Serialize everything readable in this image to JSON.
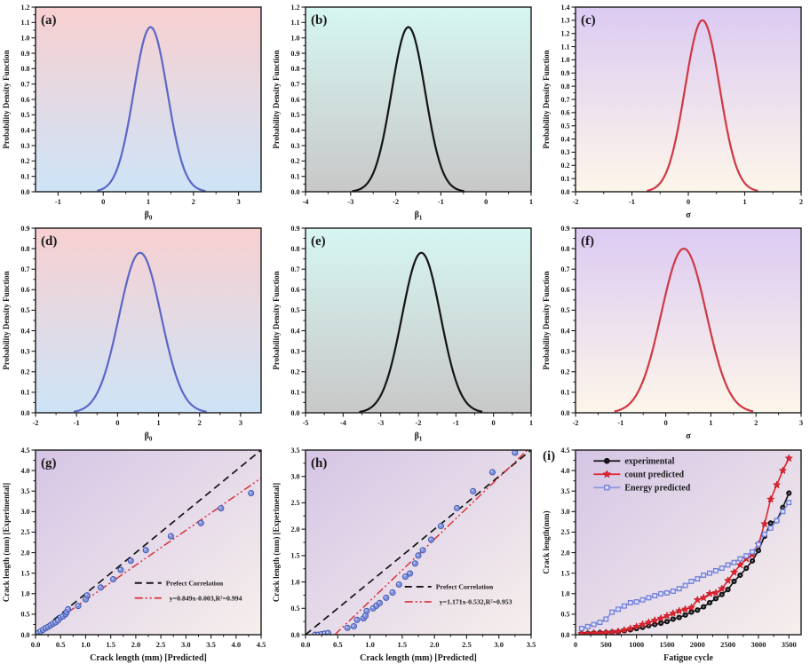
{
  "figure": {
    "background": "#ffffff",
    "description": "3x3 grid of statistical plots: probability density functions (a-f) and crack length prediction plots (g-i)"
  },
  "chart_data": [
    {
      "key": "a",
      "label": "(a)",
      "type": "pdf",
      "title": "",
      "xlabel": {
        "main": "β",
        "sub": "0"
      },
      "ylabel": "Probability Density Function",
      "xlim": [
        -1.5,
        3.5
      ],
      "ylim": [
        0,
        1.2
      ],
      "xaxis": {
        "min": -1,
        "max": 3,
        "step": 1,
        "decimals": 0
      },
      "yaxis": {
        "min": 0,
        "max": 1.2,
        "step": 0.1,
        "decimals": 1
      },
      "bg": {
        "from": "#f8d0d1",
        "to": "#cde4f7",
        "dir": "v"
      },
      "curve": {
        "color": "#5b67c6",
        "mean": 1.05,
        "sd": 0.373,
        "peak": 1.07,
        "range": [
          -0.12,
          2.25
        ]
      }
    },
    {
      "key": "b",
      "label": "(b)",
      "type": "pdf",
      "title": "",
      "xlabel": {
        "main": "β",
        "sub": "1"
      },
      "ylabel": "Probability Density Function",
      "xlim": [
        -4,
        1
      ],
      "ylim": [
        0,
        1.2
      ],
      "xaxis": {
        "min": -4,
        "max": 1,
        "step": 1,
        "decimals": 0
      },
      "yaxis": {
        "min": 0,
        "max": 1.2,
        "step": 0.1,
        "decimals": 1
      },
      "bg": {
        "from": "#d6f6f2",
        "to": "#c8c8c8",
        "dir": "v"
      },
      "curve": {
        "color": "#141414",
        "mean": -1.72,
        "sd": 0.373,
        "peak": 1.07,
        "range": [
          -2.95,
          -0.5
        ]
      }
    },
    {
      "key": "c",
      "label": "(c)",
      "type": "pdf",
      "title": "",
      "xlabel": {
        "main": "σ",
        "sub": ""
      },
      "ylabel": "Probability Density Function",
      "xlim": [
        -2,
        2
      ],
      "ylim": [
        0,
        1.4
      ],
      "xaxis": {
        "min": -2,
        "max": 2,
        "step": 1,
        "decimals": 0
      },
      "yaxis": {
        "min": 0,
        "max": 1.4,
        "step": 0.1,
        "decimals": 1
      },
      "bg": {
        "from": "#dccaf2",
        "to": "#fdf6ea",
        "dir": "v"
      },
      "curve": {
        "color": "#cf3843",
        "mean": 0.25,
        "sd": 0.307,
        "peak": 1.3,
        "range": [
          -0.72,
          1.22
        ]
      }
    },
    {
      "key": "d",
      "label": "(d)",
      "type": "pdf",
      "title": "",
      "xlabel": {
        "main": "β",
        "sub": "0"
      },
      "ylabel": "Probability Density Function",
      "xlim": [
        -2,
        3.5
      ],
      "ylim": [
        0,
        0.9
      ],
      "xaxis": {
        "min": -2,
        "max": 3,
        "step": 1,
        "decimals": 0
      },
      "yaxis": {
        "min": 0,
        "max": 0.9,
        "step": 0.1,
        "decimals": 1
      },
      "bg": {
        "from": "#f8d0d1",
        "to": "#cde4f7",
        "dir": "v"
      },
      "curve": {
        "color": "#5b67c6",
        "mean": 0.55,
        "sd": 0.512,
        "peak": 0.78,
        "range": [
          -1.05,
          2.15
        ]
      }
    },
    {
      "key": "e",
      "label": "(e)",
      "type": "pdf",
      "title": "",
      "xlabel": {
        "main": "β",
        "sub": "1"
      },
      "ylabel": "Probability Density Function",
      "xlim": [
        -5,
        1
      ],
      "ylim": [
        0,
        0.9
      ],
      "xaxis": {
        "min": -5,
        "max": 1,
        "step": 1,
        "decimals": 0
      },
      "yaxis": {
        "min": 0,
        "max": 0.9,
        "step": 0.1,
        "decimals": 1
      },
      "bg": {
        "from": "#d6f6f2",
        "to": "#c8c8c8",
        "dir": "v"
      },
      "curve": {
        "color": "#141414",
        "mean": -1.92,
        "sd": 0.512,
        "peak": 0.78,
        "range": [
          -3.55,
          -0.32
        ]
      }
    },
    {
      "key": "f",
      "label": "(f)",
      "type": "pdf",
      "title": "",
      "xlabel": {
        "main": "σ",
        "sub": ""
      },
      "ylabel": "Probability Density Function",
      "xlim": [
        -2,
        3
      ],
      "ylim": [
        0,
        0.9
      ],
      "xaxis": {
        "min": -2,
        "max": 3,
        "step": 1,
        "decimals": 0
      },
      "yaxis": {
        "min": 0,
        "max": 0.9,
        "step": 0.1,
        "decimals": 1
      },
      "bg": {
        "from": "#dccaf2",
        "to": "#fdf6ea",
        "dir": "v"
      },
      "curve": {
        "color": "#cf3843",
        "mean": 0.4,
        "sd": 0.499,
        "peak": 0.8,
        "range": [
          -1.12,
          1.92
        ]
      }
    },
    {
      "key": "g",
      "label": "(g)",
      "type": "scatter",
      "title": "",
      "xlabel": {
        "main": "Crack length (mm) [Predicted]",
        "sub": ""
      },
      "ylabel": "Crack length (mm) [Experimental]",
      "xlim": [
        0,
        4.5
      ],
      "ylim": [
        0,
        4.5
      ],
      "xaxis": {
        "min": 0,
        "max": 4.5,
        "step": 0.5,
        "decimals": 1
      },
      "yaxis": {
        "min": 0,
        "max": 4.5,
        "step": 0.5,
        "decimals": 1
      },
      "bg": {
        "from": "#d5c5e5",
        "to": "#f6efec",
        "dir": "d"
      },
      "marker": {
        "fill": "#8192dd",
        "stroke": "#3f55b0"
      },
      "points": [
        [
          0.05,
          0.04
        ],
        [
          0.1,
          0.08
        ],
        [
          0.15,
          0.12
        ],
        [
          0.2,
          0.16
        ],
        [
          0.25,
          0.19
        ],
        [
          0.3,
          0.23
        ],
        [
          0.35,
          0.27
        ],
        [
          0.4,
          0.3
        ],
        [
          0.45,
          0.35
        ],
        [
          0.5,
          0.42
        ],
        [
          0.55,
          0.45
        ],
        [
          0.6,
          0.5
        ],
        [
          0.62,
          0.55
        ],
        [
          0.65,
          0.62
        ],
        [
          0.85,
          0.7
        ],
        [
          1.0,
          0.86
        ],
        [
          1.03,
          0.96
        ],
        [
          1.3,
          1.15
        ],
        [
          1.55,
          1.35
        ],
        [
          1.7,
          1.58
        ],
        [
          1.9,
          1.8
        ],
        [
          2.2,
          2.06
        ],
        [
          2.7,
          2.4
        ],
        [
          3.3,
          2.72
        ],
        [
          3.7,
          3.08
        ],
        [
          4.3,
          3.45
        ]
      ],
      "perfect_line": {
        "label": "Prefect Correlation",
        "color": "#141414"
      },
      "fit_line": {
        "slope": 0.849,
        "intercept": -0.003,
        "label": "y=0.849x-0.003,R²=0.994",
        "color": "#d9333e"
      },
      "legend_pos": [
        0.44,
        0.72
      ]
    },
    {
      "key": "h",
      "label": "(h)",
      "type": "scatter",
      "title": "",
      "xlabel": {
        "main": "Crack length (mm) [Predicted]",
        "sub": ""
      },
      "ylabel": "Crack length (mm) [Experimental]",
      "xlim": [
        0,
        3.5
      ],
      "ylim": [
        0,
        3.5
      ],
      "xaxis": {
        "min": 0,
        "max": 3.5,
        "step": 0.5,
        "decimals": 1
      },
      "yaxis": {
        "min": 0,
        "max": 3.5,
        "step": 0.5,
        "decimals": 1
      },
      "bg": {
        "from": "#d5c5e5",
        "to": "#f6efec",
        "dir": "d"
      },
      "marker": {
        "fill": "#8192dd",
        "stroke": "#3f55b0"
      },
      "points": [
        [
          0.15,
          0.0
        ],
        [
          0.2,
          0.0
        ],
        [
          0.25,
          0.01
        ],
        [
          0.3,
          0.02
        ],
        [
          0.35,
          0.03
        ],
        [
          0.65,
          0.13
        ],
        [
          0.75,
          0.16
        ],
        [
          0.8,
          0.28
        ],
        [
          0.9,
          0.31
        ],
        [
          0.93,
          0.36
        ],
        [
          0.95,
          0.45
        ],
        [
          1.05,
          0.5
        ],
        [
          1.1,
          0.55
        ],
        [
          1.15,
          0.6
        ],
        [
          1.25,
          0.7
        ],
        [
          1.35,
          0.8
        ],
        [
          1.45,
          0.95
        ],
        [
          1.55,
          1.1
        ],
        [
          1.62,
          1.16
        ],
        [
          1.7,
          1.35
        ],
        [
          1.75,
          1.5
        ],
        [
          1.82,
          1.6
        ],
        [
          1.95,
          1.8
        ],
        [
          2.1,
          2.06
        ],
        [
          2.35,
          2.4
        ],
        [
          2.6,
          2.72
        ],
        [
          2.9,
          3.08
        ],
        [
          3.25,
          3.45
        ]
      ],
      "perfect_line": {
        "label": "Prefect Correlation",
        "color": "#141414"
      },
      "fit_line": {
        "slope": 1.171,
        "intercept": -0.532,
        "label": "y=1.171x-0.532,R²=0.953",
        "color": "#d9333e"
      },
      "legend_pos": [
        0.44,
        0.74
      ]
    },
    {
      "key": "i",
      "label": "(i)",
      "type": "series",
      "title": "",
      "xlabel": {
        "main": "Fatigue cycle",
        "sub": ""
      },
      "ylabel": "Crack length(mm)",
      "xlim": [
        0,
        3700
      ],
      "ylim": [
        0,
        4.5
      ],
      "xaxis": {
        "min": 0,
        "max": 3500,
        "step": 500,
        "decimals": 0
      },
      "yaxis": {
        "min": 0,
        "max": 4.5,
        "step": 0.5,
        "decimals": 1
      },
      "bg": {
        "from": "#d5c5e5",
        "to": "#f6efec",
        "dir": "d"
      },
      "x": [
        100,
        200,
        300,
        400,
        500,
        600,
        700,
        800,
        900,
        1000,
        1100,
        1200,
        1300,
        1400,
        1500,
        1600,
        1700,
        1800,
        1900,
        2000,
        2100,
        2200,
        2300,
        2400,
        2500,
        2600,
        2700,
        2800,
        2900,
        3000,
        3100,
        3200,
        3300,
        3400,
        3500
      ],
      "series": [
        {
          "name": "experimental",
          "marker": "circle",
          "line_color": "#141414",
          "fill": "#141414",
          "stroke": "#141414",
          "values": [
            0.02,
            0.03,
            0.04,
            0.05,
            0.05,
            0.06,
            0.07,
            0.1,
            0.12,
            0.15,
            0.18,
            0.22,
            0.25,
            0.28,
            0.32,
            0.38,
            0.42,
            0.48,
            0.55,
            0.6,
            0.68,
            0.78,
            0.88,
            0.98,
            1.1,
            1.3,
            1.45,
            1.62,
            1.8,
            2.05,
            2.4,
            2.72,
            2.78,
            3.1,
            3.45
          ]
        },
        {
          "name": "count predicted",
          "marker": "star",
          "line_color": "#e0232e",
          "fill": "#e0232e",
          "stroke": "#b01520",
          "values": [
            0.03,
            0.03,
            0.04,
            0.04,
            0.05,
            0.06,
            0.08,
            0.11,
            0.15,
            0.2,
            0.25,
            0.3,
            0.35,
            0.4,
            0.46,
            0.52,
            0.58,
            0.62,
            0.66,
            0.85,
            0.9,
            1.0,
            1.02,
            1.12,
            1.32,
            1.52,
            1.7,
            1.85,
            1.95,
            2.2,
            2.7,
            3.3,
            3.65,
            4.0,
            4.3
          ]
        },
        {
          "name": "Energy predicted",
          "marker": "square",
          "line_color": "#8b96e3",
          "fill": "#aeb8ef",
          "stroke": "#5d6ace",
          "values": [
            0.15,
            0.2,
            0.25,
            0.3,
            0.38,
            0.55,
            0.62,
            0.7,
            0.78,
            0.8,
            0.85,
            0.9,
            0.95,
            1.0,
            1.02,
            1.06,
            1.12,
            1.2,
            1.3,
            1.36,
            1.45,
            1.5,
            1.56,
            1.62,
            1.7,
            1.76,
            1.85,
            1.92,
            2.02,
            2.2,
            2.45,
            2.6,
            2.78,
            3.0,
            3.22
          ]
        }
      ],
      "legend_pos": [
        0.08,
        0.03
      ]
    }
  ]
}
